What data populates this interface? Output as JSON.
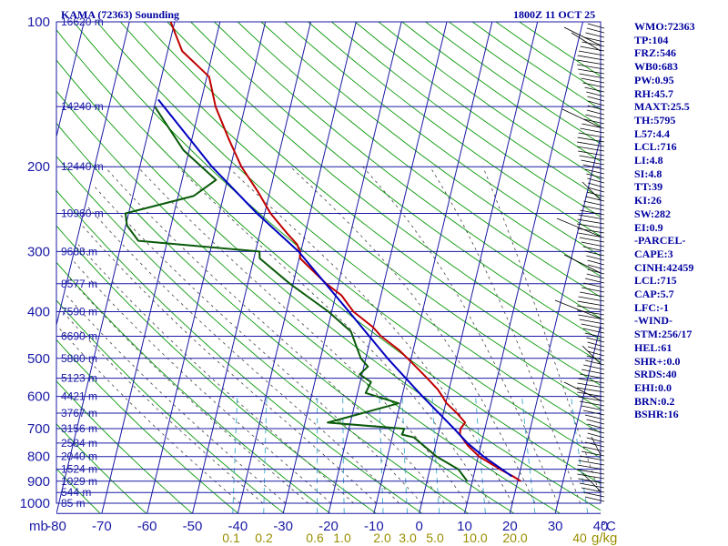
{
  "header": {
    "station": "KAMA (72363) Sounding",
    "time": "1800Z 11 OCT 25"
  },
  "colors": {
    "grid": "#1a1aa6",
    "dry_adiabat": "#0a9a0a",
    "moist_adiabat": "#444444",
    "mixing_ratio": "#3aa6cc",
    "temperature": "#c00000",
    "dewpoint": "#0a5a0a",
    "parcel": "#0000c0",
    "wind": "#000000",
    "mixing_ratio_label": "#9a8f00"
  },
  "indices": [
    "WMO:72363",
    "TP:104",
    "FRZ:546",
    "WB0:683",
    "PW:0.95",
    "RH:45.7",
    "MAXT:25.5",
    "TH:5795",
    "L57:4.4",
    "LCL:716",
    "LI:4.8",
    "SI:4.8",
    "TT:39",
    "KI:26",
    "SW:282",
    "EI:0.9",
    "-PARCEL-",
    "CAPE:3",
    "CINH:42459",
    "LCL:715",
    "CAP:5.7",
    "LFC:-1",
    "-WIND-",
    "STM:256/17",
    "HEL:61",
    "SHR+:0.0",
    "SRDS:40",
    "EHI:0.0",
    "BRN:0.2",
    "BSHR:16"
  ],
  "chart_data": {
    "type": "skew-t log-p sounding",
    "title": "KAMA (72363) Sounding",
    "xlabel": "°C",
    "ylabel": "mb",
    "pressure_ticks": [
      100,
      200,
      300,
      400,
      500,
      600,
      700,
      800,
      900,
      1000
    ],
    "pressure_tick_labels": [
      "100",
      "200",
      "300",
      "400",
      "500",
      "600",
      "700",
      "800",
      "900",
      "1000"
    ],
    "pressure_range": [
      100,
      1050
    ],
    "temperature_ticks": [
      -80,
      -70,
      -60,
      -50,
      -40,
      -30,
      -20,
      -10,
      0,
      10,
      20,
      30,
      40
    ],
    "temperature_tick_labels": [
      "-80",
      "-70",
      "-60",
      "-50",
      "-40",
      "-30",
      "-20",
      "-10",
      "0",
      "10",
      "20",
      "30",
      "40"
    ],
    "temperature_range": [
      -80,
      40
    ],
    "mixing_ratio_labels": [
      "0.1",
      "0.2",
      "0.6",
      "1.0",
      "2.0",
      "3.0",
      "5.0",
      "10.0",
      "20.0",
      "40"
    ],
    "mixing_ratio_unit": "g/kg",
    "height_labels": [
      {
        "p": 100,
        "label": "16620 m"
      },
      {
        "p": 150,
        "label": "14240 m"
      },
      {
        "p": 200,
        "label": "12440 m"
      },
      {
        "p": 250,
        "label": "10960 m"
      },
      {
        "p": 300,
        "label": "9688 m"
      },
      {
        "p": 350,
        "label": "8577 m"
      },
      {
        "p": 400,
        "label": "7590 m"
      },
      {
        "p": 450,
        "label": "6690 m"
      },
      {
        "p": 500,
        "label": "5880 m"
      },
      {
        "p": 550,
        "label": "5123 m"
      },
      {
        "p": 600,
        "label": "4421 m"
      },
      {
        "p": 650,
        "label": "3767 m"
      },
      {
        "p": 700,
        "label": "3156 m"
      },
      {
        "p": 750,
        "label": "2584 m"
      },
      {
        "p": 800,
        "label": "2040 m"
      },
      {
        "p": 850,
        "label": "1524 m"
      },
      {
        "p": 900,
        "label": "1029 m"
      },
      {
        "p": 950,
        "label": "544 m"
      },
      {
        "p": 1000,
        "label": "85 m"
      }
    ],
    "series": [
      {
        "name": "temperature",
        "points": [
          [
            100,
            -80.9
          ],
          [
            115,
            -76.8
          ],
          [
            130,
            -69.5
          ],
          [
            150,
            -66.5
          ],
          [
            175,
            -61.9
          ],
          [
            200,
            -57.6
          ],
          [
            225,
            -52.7
          ],
          [
            250,
            -48.7
          ],
          [
            275,
            -44.0
          ],
          [
            290,
            -41.2
          ],
          [
            300,
            -40.2
          ],
          [
            310,
            -39.8
          ],
          [
            350,
            -32.7
          ],
          [
            370,
            -28.7
          ],
          [
            400,
            -25.2
          ],
          [
            430,
            -20.2
          ],
          [
            450,
            -17.8
          ],
          [
            480,
            -13.2
          ],
          [
            500,
            -10.8
          ],
          [
            550,
            -5.4
          ],
          [
            580,
            -2.5
          ],
          [
            600,
            -1.1
          ],
          [
            620,
            0.2
          ],
          [
            650,
            3.0
          ],
          [
            680,
            5.3
          ],
          [
            700,
            4.6
          ],
          [
            720,
            4.8
          ],
          [
            760,
            7.2
          ],
          [
            800,
            10.2
          ],
          [
            850,
            15.5
          ],
          [
            880,
            18.8
          ],
          [
            900,
            20.7
          ]
        ]
      },
      {
        "name": "dewpoint",
        "points": [
          [
            150,
            -79.9
          ],
          [
            185,
            -71.2
          ],
          [
            213,
            -62.5
          ],
          [
            230,
            -66.6
          ],
          [
            250,
            -80.7
          ],
          [
            265,
            -79.7
          ],
          [
            285,
            -76.4
          ],
          [
            300,
            -49.1
          ],
          [
            310,
            -48.7
          ],
          [
            350,
            -40.7
          ],
          [
            400,
            -30.7
          ],
          [
            440,
            -24.7
          ],
          [
            500,
            -21.1
          ],
          [
            520,
            -19.1
          ],
          [
            540,
            -20.5
          ],
          [
            560,
            -17.6
          ],
          [
            590,
            -18.2
          ],
          [
            620,
            -10.4
          ],
          [
            680,
            -25.0
          ],
          [
            700,
            -7.8
          ],
          [
            720,
            -8.0
          ],
          [
            730,
            -5.2
          ],
          [
            800,
            0.8
          ],
          [
            850,
            6.3
          ],
          [
            900,
            8.9
          ]
        ]
      },
      {
        "name": "parcel",
        "points": [
          [
            145,
            -79.5
          ],
          [
            200,
            -64.1
          ],
          [
            250,
            -51.7
          ],
          [
            300,
            -40.5
          ],
          [
            400,
            -26.2
          ],
          [
            500,
            -15.2
          ],
          [
            600,
            -5.5
          ],
          [
            700,
            3.2
          ],
          [
            750,
            6.9
          ],
          [
            800,
            11.2
          ],
          [
            850,
            15.9
          ],
          [
            880,
            18.5
          ]
        ]
      }
    ],
    "grid": true,
    "legend": "none"
  }
}
